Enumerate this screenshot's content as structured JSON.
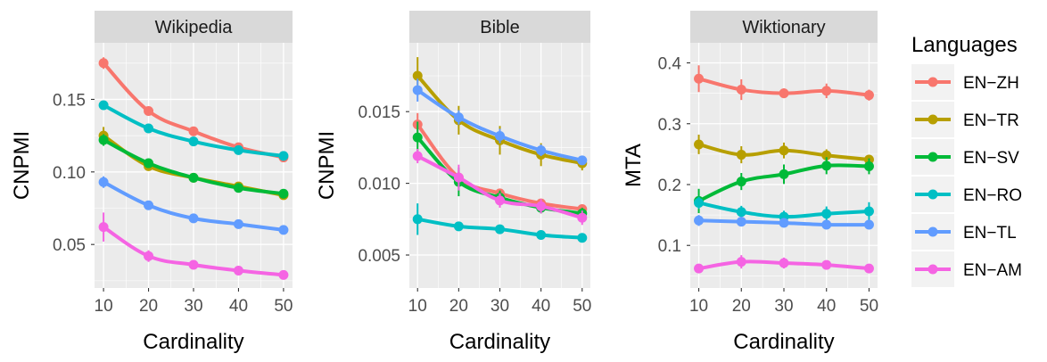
{
  "legend": {
    "title": "Languages",
    "entries": [
      "EN−ZH",
      "EN−TR",
      "EN−SV",
      "EN−RO",
      "EN−TL",
      "EN−AM"
    ]
  },
  "colors": {
    "EN-ZH": "#F8766D",
    "EN-TR": "#B79F00",
    "EN-SV": "#00BA38",
    "EN-RO": "#00BFC4",
    "EN-TL": "#619CFF",
    "EN-AM": "#F564E3",
    "panel_bg": "#EBEBEB",
    "strip_bg": "#D9D9D9",
    "grid": "#FFFFFF"
  },
  "chart_data": [
    {
      "type": "line",
      "title": "Wikipedia",
      "xlabel": "Cardinality",
      "ylabel": "CNPMI",
      "x": [
        10,
        20,
        30,
        40,
        50
      ],
      "x_ticks": [
        "10",
        "20",
        "30",
        "40",
        "50"
      ],
      "y_ticks": [
        "0.05",
        "0.10",
        "0.15"
      ],
      "y_tick_values": [
        0.05,
        0.1,
        0.15
      ],
      "ylim": [
        0.02,
        0.189
      ],
      "series": [
        {
          "name": "EN−ZH",
          "values": [
            0.175,
            0.142,
            0.128,
            0.117,
            0.11
          ],
          "err": [
            0.004,
            0.003,
            0.002,
            0.002,
            0.002
          ]
        },
        {
          "name": "EN−TR",
          "values": [
            0.125,
            0.104,
            0.096,
            0.09,
            0.084
          ],
          "err": [
            0.006,
            0.003,
            0.002,
            0.002,
            0.002
          ]
        },
        {
          "name": "EN−SV",
          "values": [
            0.122,
            0.106,
            0.096,
            0.089,
            0.085
          ],
          "err": [
            0.004,
            0.002,
            0.002,
            0.002,
            0.002
          ]
        },
        {
          "name": "EN−RO",
          "values": [
            0.146,
            0.13,
            0.121,
            0.115,
            0.111
          ],
          "err": [
            0.003,
            0.002,
            0.002,
            0.002,
            0.002
          ]
        },
        {
          "name": "EN−TL",
          "values": [
            0.093,
            0.077,
            0.068,
            0.064,
            0.06
          ],
          "err": [
            0.004,
            0.002,
            0.002,
            0.002,
            0.002
          ]
        },
        {
          "name": "EN−AM",
          "values": [
            0.062,
            0.042,
            0.036,
            0.032,
            0.029
          ],
          "err": [
            0.01,
            0.004,
            0.003,
            0.002,
            0.002
          ]
        }
      ]
    },
    {
      "type": "line",
      "title": "Bible",
      "xlabel": "Cardinality",
      "ylabel": "CNPMI",
      "x": [
        10,
        20,
        30,
        40,
        50
      ],
      "x_ticks": [
        "10",
        "20",
        "30",
        "40",
        "50"
      ],
      "y_ticks": [
        "0.005",
        "0.010",
        "0.015"
      ],
      "y_tick_values": [
        0.005,
        0.01,
        0.015
      ],
      "ylim": [
        0.0027,
        0.0198
      ],
      "series": [
        {
          "name": "EN−ZH",
          "values": [
            0.0141,
            0.0104,
            0.0093,
            0.0086,
            0.0082
          ],
          "err": [
            0.0008,
            0.0004,
            0.0003,
            0.0003,
            0.0003
          ]
        },
        {
          "name": "EN−TR",
          "values": [
            0.0175,
            0.0144,
            0.013,
            0.012,
            0.0114
          ],
          "err": [
            0.0013,
            0.001,
            0.001,
            0.0008,
            0.0005
          ]
        },
        {
          "name": "EN−SV",
          "values": [
            0.0132,
            0.0101,
            0.009,
            0.0083,
            0.0079
          ],
          "err": [
            0.0011,
            0.001,
            0.0005,
            0.0004,
            0.0004
          ]
        },
        {
          "name": "EN−RO",
          "values": [
            0.0075,
            0.007,
            0.0068,
            0.0064,
            0.0062
          ],
          "err": [
            0.0011,
            0.0003,
            0.0002,
            0.0002,
            0.0002
          ]
        },
        {
          "name": "EN−TL",
          "values": [
            0.0165,
            0.0146,
            0.0133,
            0.0123,
            0.0116
          ],
          "err": [
            0.0008,
            0.0005,
            0.0005,
            0.0004,
            0.0003
          ]
        },
        {
          "name": "EN−AM",
          "values": [
            0.0119,
            0.0104,
            0.0088,
            0.0084,
            0.0076
          ],
          "err": [
            0.0005,
            0.0009,
            0.0005,
            0.0005,
            0.0005
          ]
        }
      ]
    },
    {
      "type": "line",
      "title": "Wiktionary",
      "xlabel": "Cardinality",
      "ylabel": "MTA",
      "x": [
        10,
        20,
        30,
        40,
        50
      ],
      "x_ticks": [
        "10",
        "20",
        "30",
        "40",
        "50"
      ],
      "y_ticks": [
        "0.1",
        "0.2",
        "0.3",
        "0.4"
      ],
      "y_tick_values": [
        0.1,
        0.2,
        0.3,
        0.4
      ],
      "ylim": [
        0.03,
        0.433
      ],
      "series": [
        {
          "name": "EN−ZH",
          "values": [
            0.374,
            0.356,
            0.35,
            0.354,
            0.347
          ],
          "err": [
            0.022,
            0.017,
            0.008,
            0.012,
            0.009
          ]
        },
        {
          "name": "EN−TR",
          "values": [
            0.266,
            0.249,
            0.256,
            0.248,
            0.241
          ],
          "err": [
            0.016,
            0.014,
            0.013,
            0.01,
            0.008
          ]
        },
        {
          "name": "EN−SV",
          "values": [
            0.173,
            0.205,
            0.217,
            0.231,
            0.23
          ],
          "err": [
            0.02,
            0.014,
            0.016,
            0.014,
            0.013
          ]
        },
        {
          "name": "EN−RO",
          "values": [
            0.17,
            0.155,
            0.147,
            0.152,
            0.156
          ],
          "err": [
            0.01,
            0.01,
            0.01,
            0.012,
            0.015
          ]
        },
        {
          "name": "EN−TL",
          "values": [
            0.141,
            0.139,
            0.137,
            0.134,
            0.134
          ],
          "err": [
            0.009,
            0.007,
            0.007,
            0.007,
            0.005
          ]
        },
        {
          "name": "EN−AM",
          "values": [
            0.062,
            0.073,
            0.071,
            0.068,
            0.062
          ],
          "err": [
            0.006,
            0.011,
            0.009,
            0.005,
            0.005
          ]
        }
      ]
    }
  ]
}
